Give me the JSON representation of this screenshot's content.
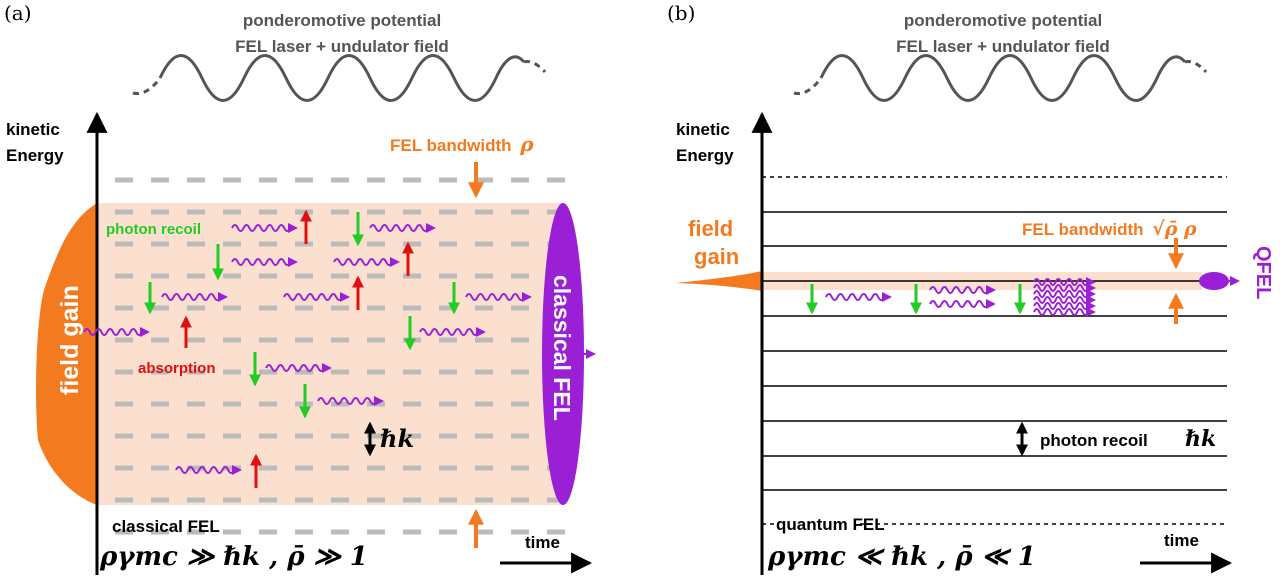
{
  "panel_a": {
    "label": "(a)",
    "title_line1": "ponderomotive potential",
    "title_line2": "FEL laser + undulator field",
    "axis_y_line1": "kinetic",
    "axis_y_line2": "Energy",
    "bandwidth_label": "FEL bandwidth",
    "bandwidth_symbol": "ρ",
    "photon_recoil_label": "photon recoil",
    "absorption_label": "absorption",
    "field_gain_label": "field gain",
    "classical_fel_vertical": "classical FEL",
    "hbar_k": "ℏk",
    "regime_label": "classical FEL",
    "formula": "ργmc ≫ ℏk , ρ̄ ≫ 1",
    "time_label": "time"
  },
  "panel_b": {
    "label": "(b)",
    "title_line1": "ponderomotive potential",
    "title_line2": "FEL laser + undulator field",
    "axis_y_line1": "kinetic",
    "axis_y_line2": "Energy",
    "field_gain_line1": "field",
    "field_gain_line2": "gain",
    "bandwidth_label": "FEL bandwidth",
    "bandwidth_symbol": "√ρ̄ ρ",
    "qfel_label": "QFEL",
    "photon_recoil_label": "photon recoil",
    "hbar_k": "ℏk",
    "regime_label": "quantum FEL",
    "formula": "ργmc ≪ ℏk , ρ̄ ≪ 1",
    "time_label": "time"
  },
  "colors": {
    "orange": "#f47a1f",
    "band_fill": "#fbe0cf",
    "purple": "#9b1fd4",
    "green": "#22cc22",
    "red": "#e01010",
    "grey_text": "#555555"
  }
}
